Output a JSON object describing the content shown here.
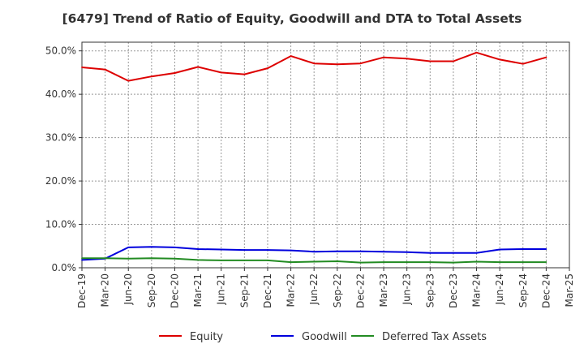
{
  "chart_data": {
    "type": "line",
    "title": "[6479]  Trend of Ratio of Equity, Goodwill and DTA to Total Assets",
    "xlabel": "",
    "ylabel": "",
    "ylim": [
      0,
      52
    ],
    "y_ticks": [
      0,
      10,
      20,
      30,
      40,
      50
    ],
    "y_tick_labels": [
      "0.0%",
      "10.0%",
      "20.0%",
      "30.0%",
      "40.0%",
      "50.0%"
    ],
    "x_tick_labels": [
      "Dec-19",
      "Mar-20",
      "Jun-20",
      "Sep-20",
      "Dec-20",
      "Mar-21",
      "Jun-21",
      "Sep-21",
      "Dec-21",
      "Mar-22",
      "Jun-22",
      "Sep-22",
      "Dec-22",
      "Mar-23",
      "Jun-23",
      "Sep-23",
      "Dec-23",
      "Mar-24",
      "Jun-24",
      "Sep-24",
      "Dec-24",
      "Mar-25"
    ],
    "x": [
      "Dec-19",
      "Mar-20",
      "Jun-20",
      "Sep-20",
      "Dec-20",
      "Mar-21",
      "Jun-21",
      "Sep-21",
      "Dec-21",
      "Mar-22",
      "Jun-22",
      "Sep-22",
      "Dec-22",
      "Mar-23",
      "Jun-23",
      "Sep-23",
      "Dec-23",
      "Mar-24",
      "Jun-24",
      "Sep-24",
      "Dec-24"
    ],
    "grid": true,
    "legend_position": "bottom",
    "series": [
      {
        "name": "Equity",
        "color": "#dd0000",
        "values": [
          46.2,
          45.7,
          43.1,
          44.1,
          44.9,
          46.3,
          45.0,
          44.6,
          46.0,
          48.8,
          47.1,
          46.9,
          47.1,
          48.5,
          48.2,
          47.6,
          47.6,
          49.6,
          48.0,
          47.0,
          48.5
        ]
      },
      {
        "name": "Goodwill",
        "color": "#0000dd",
        "values": [
          1.8,
          2.1,
          4.7,
          4.8,
          4.7,
          4.3,
          4.2,
          4.1,
          4.1,
          4.0,
          3.7,
          3.8,
          3.8,
          3.7,
          3.6,
          3.4,
          3.4,
          3.4,
          4.2,
          4.3,
          4.3
        ]
      },
      {
        "name": "Deferred Tax Assets",
        "color": "#228b22",
        "values": [
          2.2,
          2.2,
          2.1,
          2.2,
          2.1,
          1.8,
          1.7,
          1.7,
          1.7,
          1.3,
          1.4,
          1.5,
          1.2,
          1.3,
          1.3,
          1.3,
          1.2,
          1.4,
          1.3,
          1.3,
          1.3
        ]
      }
    ]
  }
}
